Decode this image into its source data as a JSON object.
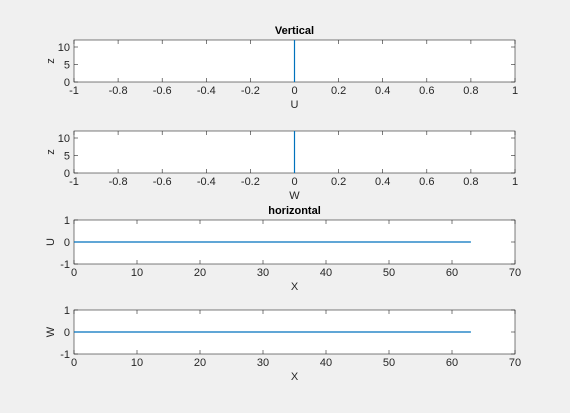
{
  "chart_data": [
    {
      "type": "line",
      "title": "Vertical",
      "xlabel": "U",
      "ylabel": "z",
      "xlim": [
        -1,
        1
      ],
      "ylim": [
        0,
        12
      ],
      "xticks": [
        "-1",
        "-0.8",
        "-0.6",
        "-0.4",
        "-0.2",
        "0",
        "0.2",
        "0.4",
        "0.6",
        "0.8",
        "1"
      ],
      "xtick_values": [
        -1,
        -0.8,
        -0.6,
        -0.4,
        -0.2,
        0,
        0.2,
        0.4,
        0.6,
        0.8,
        1
      ],
      "yticks": [
        "0",
        "5",
        "10"
      ],
      "ytick_values": [
        0,
        5,
        10
      ],
      "series": [
        {
          "x": [
            0,
            0
          ],
          "y": [
            0,
            12
          ],
          "color": "#0072bd"
        }
      ]
    },
    {
      "type": "line",
      "title": "",
      "xlabel": "W",
      "ylabel": "z",
      "xlim": [
        -1,
        1
      ],
      "ylim": [
        0,
        12
      ],
      "xticks": [
        "-1",
        "-0.8",
        "-0.6",
        "-0.4",
        "-0.2",
        "0",
        "0.2",
        "0.4",
        "0.6",
        "0.8",
        "1"
      ],
      "xtick_values": [
        -1,
        -0.8,
        -0.6,
        -0.4,
        -0.2,
        0,
        0.2,
        0.4,
        0.6,
        0.8,
        1
      ],
      "yticks": [
        "0",
        "5",
        "10"
      ],
      "ytick_values": [
        0,
        5,
        10
      ],
      "series": [
        {
          "x": [
            0,
            0
          ],
          "y": [
            0,
            12
          ],
          "color": "#0072bd"
        }
      ]
    },
    {
      "type": "line",
      "title": "horizontal",
      "xlabel": "X",
      "ylabel": "U",
      "xlim": [
        0,
        70
      ],
      "ylim": [
        -1,
        1
      ],
      "xticks": [
        "0",
        "10",
        "20",
        "30",
        "40",
        "50",
        "60",
        "70"
      ],
      "xtick_values": [
        0,
        10,
        20,
        30,
        40,
        50,
        60,
        70
      ],
      "yticks": [
        "-1",
        "0",
        "1"
      ],
      "ytick_values": [
        -1,
        0,
        1
      ],
      "series": [
        {
          "x": [
            0,
            63
          ],
          "y": [
            0,
            0
          ],
          "color": "#0072bd"
        }
      ]
    },
    {
      "type": "line",
      "title": "",
      "xlabel": "X",
      "ylabel": "W",
      "xlim": [
        0,
        70
      ],
      "ylim": [
        -1,
        1
      ],
      "xticks": [
        "0",
        "10",
        "20",
        "30",
        "40",
        "50",
        "60",
        "70"
      ],
      "xtick_values": [
        0,
        10,
        20,
        30,
        40,
        50,
        60,
        70
      ],
      "yticks": [
        "-1",
        "0",
        "1"
      ],
      "ytick_values": [
        -1,
        0,
        1
      ],
      "series": [
        {
          "x": [
            0,
            63
          ],
          "y": [
            0,
            0
          ],
          "color": "#0072bd"
        }
      ]
    }
  ]
}
